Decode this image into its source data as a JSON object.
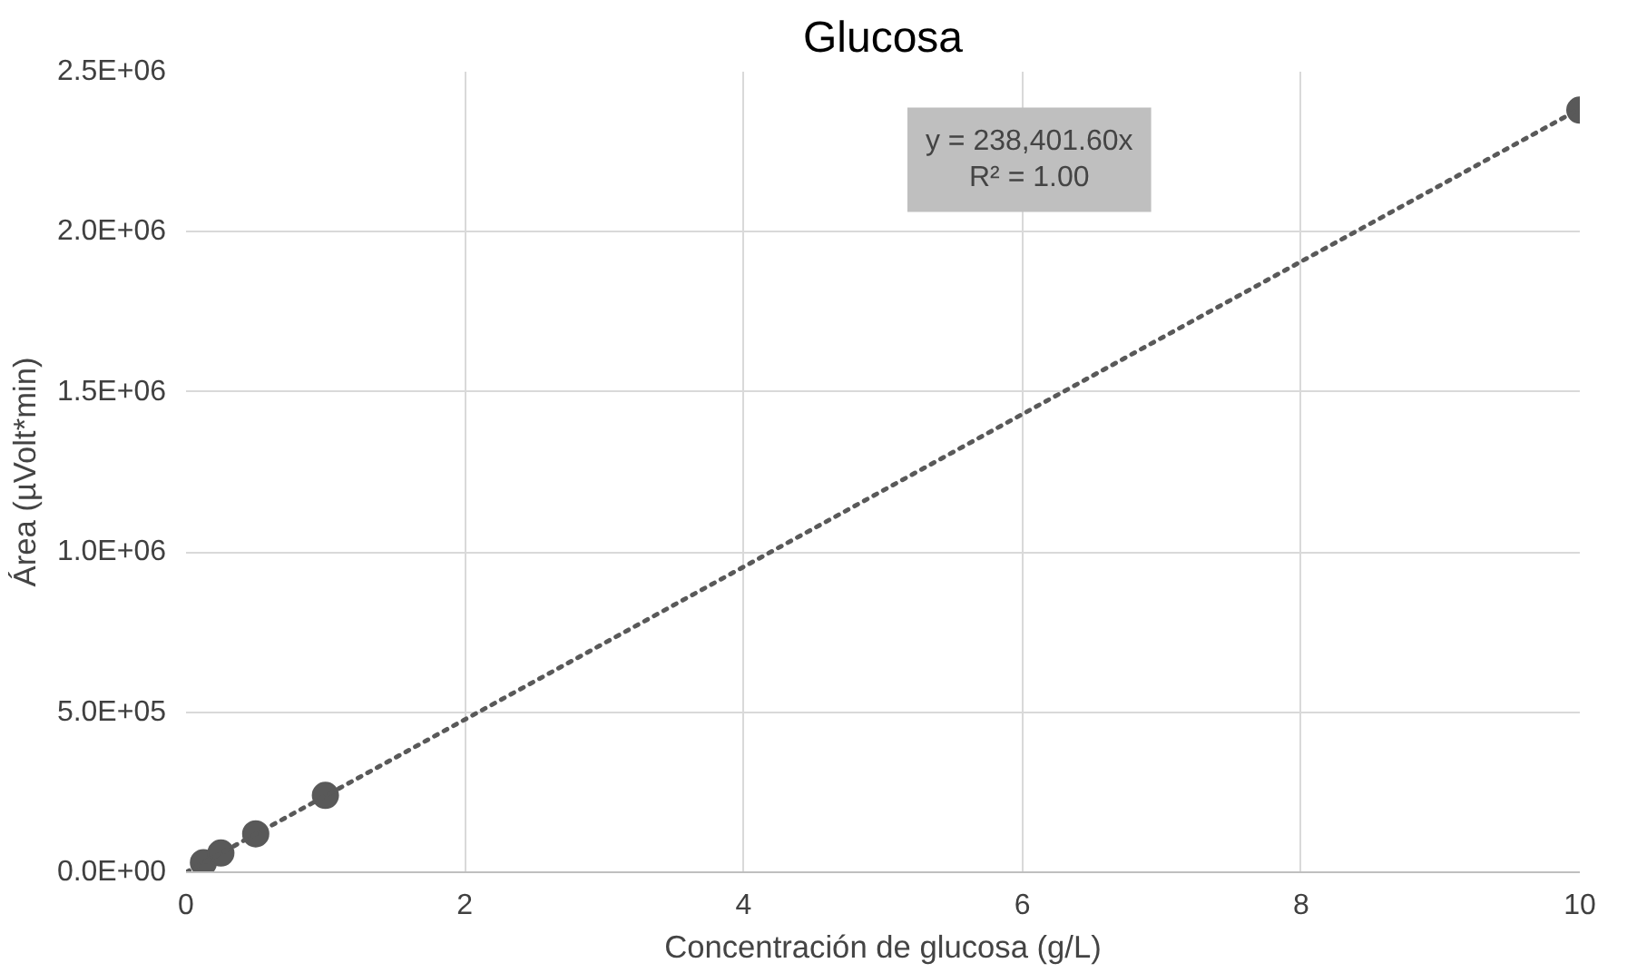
{
  "chart_data": {
    "type": "scatter",
    "title": "Glucosa",
    "xlabel": "Concentración de glucosa (g/L)",
    "ylabel": "Área (µVolt*min)",
    "x": [
      0.125,
      0.25,
      0.5,
      1,
      10
    ],
    "series": [
      {
        "color": "#595959",
        "values": [
          30000,
          60000,
          120000,
          240000,
          2380000
        ],
        "marker": "circle"
      },
      {
        "type": "line",
        "color": "#595959",
        "x": [
          0,
          10
        ],
        "values": [
          0,
          2384000
        ],
        "line_style": "dotted"
      }
    ],
    "annotations": [
      "y = 238,401.60x",
      "R² = 1.00"
    ],
    "xlim": [
      0,
      10
    ],
    "xticks": [
      0,
      2,
      4,
      6,
      8,
      10
    ],
    "ylim": [
      0,
      2500000
    ],
    "yticks": [
      {
        "value": 0,
        "label": "0.0E+00"
      },
      {
        "value": 500000,
        "label": "5.0E+05"
      },
      {
        "value": 1000000,
        "label": "1.0E+06"
      },
      {
        "value": 1500000,
        "label": "1.5E+06"
      },
      {
        "value": 2000000,
        "label": "2.0E+06"
      },
      {
        "value": 2500000,
        "label": "2.5E+06"
      }
    ],
    "grid": true
  }
}
